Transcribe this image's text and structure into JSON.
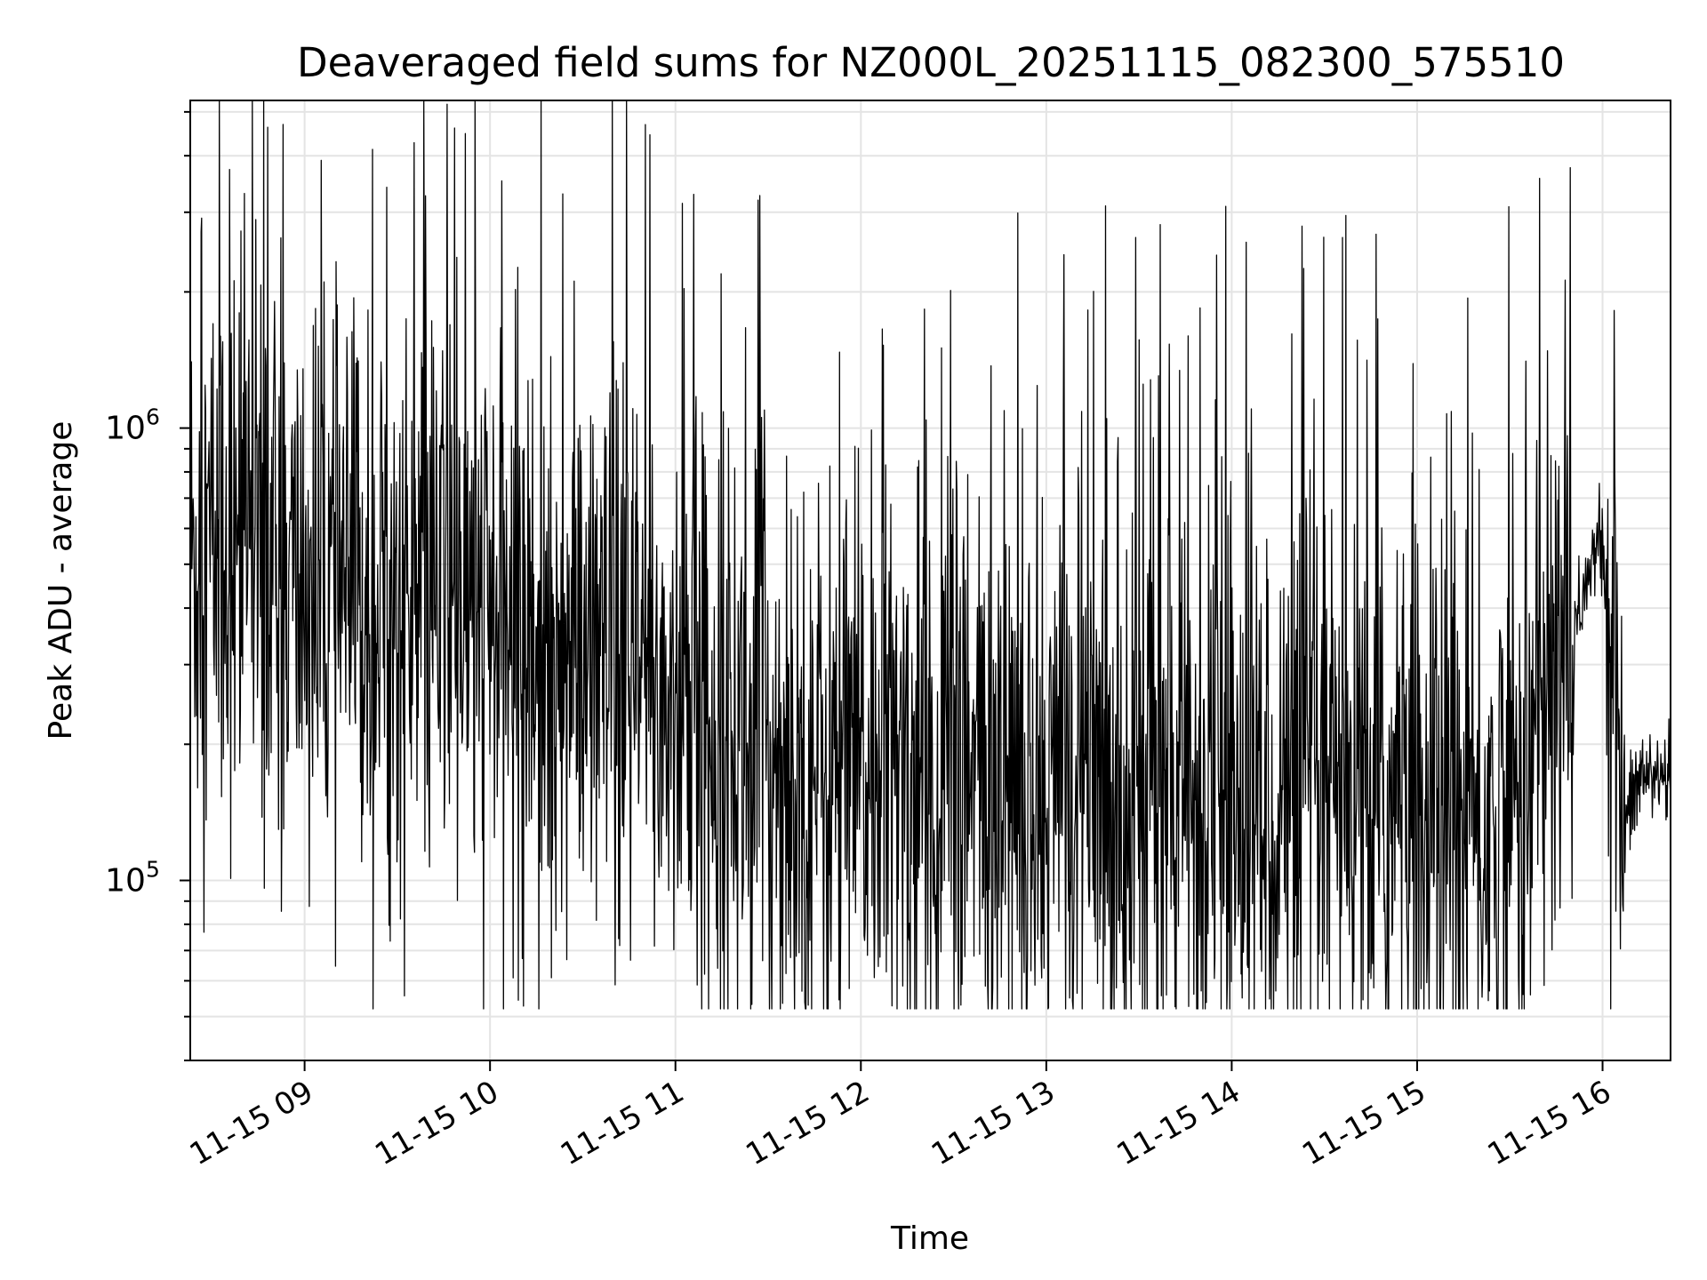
{
  "chart_data": {
    "type": "line",
    "title": "Deaveraged field sums for NZ000L_20251115_082300_575510",
    "xlabel": "Time",
    "ylabel": "Peak ADU - average",
    "yscale": "log",
    "grid": true,
    "xlim": [
      "2025-11-15 08:23:00",
      "2025-11-15 16:22:00"
    ],
    "ylim": [
      40000,
      5300000
    ],
    "x_ticks": [
      "11-15 09",
      "11-15 10",
      "11-15 11",
      "11-15 12",
      "11-15 13",
      "11-15 14",
      "11-15 15",
      "11-15 16"
    ],
    "y_ticks": [
      {
        "value": 100000,
        "base": "10",
        "exp": "5"
      },
      {
        "value": 1000000,
        "base": "10",
        "exp": "6"
      }
    ],
    "series": [
      {
        "name": "Peak ADU - average",
        "color": "#000000",
        "points_hours": [
          8.383,
          8.5,
          8.7,
          8.95,
          9.25,
          9.5,
          9.75,
          10.0,
          10.25,
          10.5,
          10.75,
          11.0,
          11.25,
          11.5,
          11.75,
          12.0,
          12.25,
          12.5,
          12.75,
          13.0,
          13.25,
          13.5,
          13.75,
          14.0,
          14.25,
          14.5,
          14.75,
          15.0,
          15.25,
          15.4,
          15.55,
          15.7,
          15.85,
          15.95,
          16.0,
          16.05,
          16.1,
          16.2,
          16.367
        ],
        "center_values": [
          500000,
          550000,
          520000,
          440000,
          420000,
          380000,
          420000,
          380000,
          330000,
          290000,
          270000,
          250000,
          220000,
          190000,
          170000,
          170000,
          170000,
          165000,
          160000,
          160000,
          155000,
          155000,
          150000,
          150000,
          145000,
          140000,
          140000,
          135000,
          130000,
          125000,
          160000,
          230000,
          380000,
          520000,
          540000,
          350000,
          120000,
          170000,
          170000
        ],
        "min_value": 52000,
        "max_value": 5300000
      }
    ]
  }
}
